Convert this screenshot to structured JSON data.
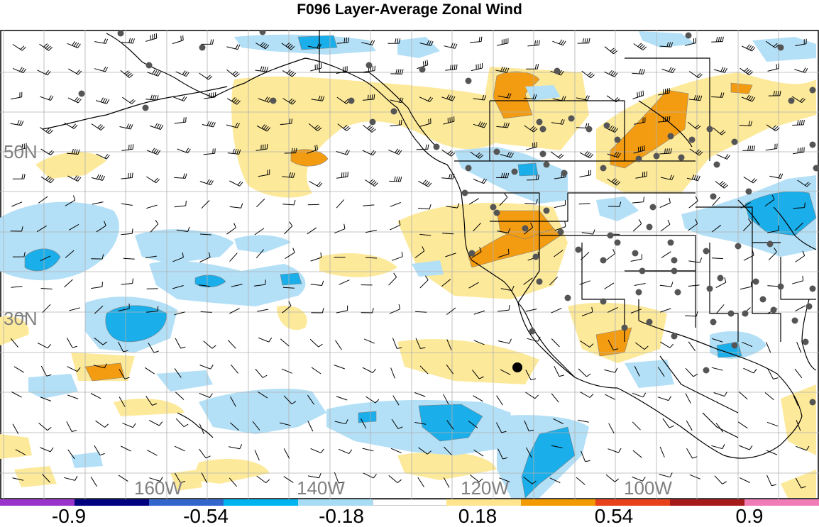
{
  "title": "F096 Layer-Average Zonal Wind",
  "map": {
    "lat_labels": [
      "50N",
      "30N"
    ],
    "lon_labels": [
      "160W",
      "140W",
      "120W",
      "100W"
    ],
    "label_color": "#808080",
    "gridline_color": "#b0b0b0",
    "region": "North-East Pacific and western North America",
    "marked_point": {
      "lon": -118.5,
      "lat": 24.5
    }
  },
  "colorbar": {
    "labels": [
      "-0.9",
      "-0.54",
      "-0.18",
      "0.18",
      "0.54",
      "0.9"
    ],
    "colors": [
      "#9933cc",
      "#000080",
      "#3366cc",
      "#00b4f0",
      "#a7dcf5",
      "#ffffff",
      "#ffe58e",
      "#f29a00",
      "#e8411b",
      "#a61a1a",
      "#f07cb7"
    ]
  },
  "palette": {
    "light_positive": "#fde99a",
    "mid_positive": "#f39c12",
    "light_negative": "#b3e0f7",
    "mid_negative": "#1aaeea",
    "station_dot": "#555555",
    "land_outline": "#000000"
  }
}
